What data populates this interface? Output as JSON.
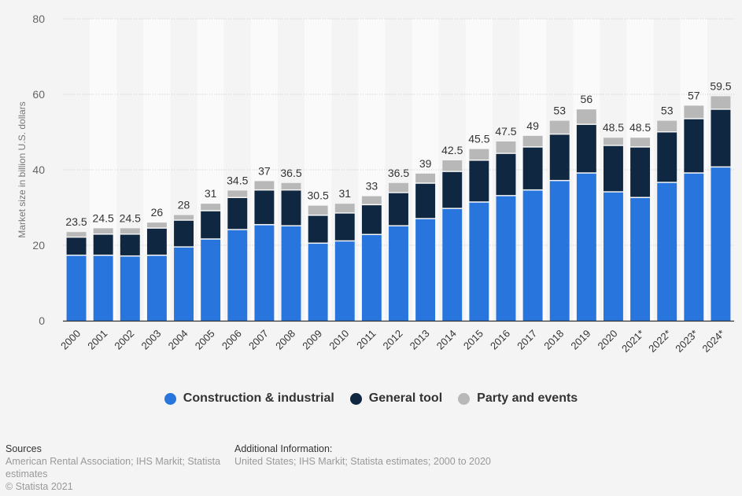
{
  "chart_data": {
    "type": "bar",
    "stacked": true,
    "title": "",
    "xlabel": "",
    "ylabel": "Market size in billion U.S. dollars",
    "ylim": [
      0,
      80
    ],
    "yticks": [
      0,
      20,
      40,
      60,
      80
    ],
    "grid": true,
    "legend_position": "bottom-center",
    "categories": [
      "2000",
      "2001",
      "2002",
      "2003",
      "2004",
      "2005",
      "2006",
      "2007",
      "2008",
      "2009",
      "2010",
      "2011",
      "2012",
      "2013",
      "2014",
      "2015",
      "2016",
      "2017",
      "2018",
      "2019",
      "2020",
      "2021*",
      "2022*",
      "2023*",
      "2024*"
    ],
    "series": [
      {
        "name": "Construction & industrial",
        "color": "#2876dd",
        "values": [
          17.2,
          17.2,
          17.0,
          17.2,
          19.4,
          21.5,
          24.0,
          25.3,
          25.0,
          20.4,
          21.0,
          22.7,
          25.0,
          26.9,
          29.6,
          31.3,
          33.0,
          34.5,
          37.0,
          39.0,
          34.0,
          32.5,
          36.5,
          39.0,
          40.6
        ]
      },
      {
        "name": "General tool",
        "color": "#0f2741",
        "values": [
          4.8,
          5.6,
          5.8,
          7.2,
          7.1,
          7.5,
          8.5,
          9.2,
          9.5,
          7.4,
          7.4,
          7.9,
          8.8,
          9.4,
          9.8,
          11.1,
          11.2,
          11.4,
          12.3,
          12.9,
          12.3,
          13.4,
          13.4,
          14.4,
          15.3
        ]
      },
      {
        "name": "Party and events",
        "color": "#b8b8b8",
        "values": [
          1.5,
          1.7,
          1.7,
          1.6,
          1.5,
          2.0,
          2.0,
          2.5,
          2.0,
          2.7,
          2.6,
          2.4,
          2.7,
          2.7,
          3.1,
          3.1,
          3.3,
          3.1,
          3.7,
          4.1,
          2.2,
          2.6,
          3.1,
          3.6,
          3.6
        ]
      }
    ],
    "totals": [
      "23.5",
      "24.5",
      "24.5",
      "26",
      "28",
      "31",
      "34.5",
      "37",
      "36.5",
      "30.5",
      "31",
      "33",
      "36.5",
      "39",
      "42.5",
      "45.5",
      "47.5",
      "49",
      "53",
      "56",
      "48.5",
      "48.5",
      "53",
      "57",
      "59.5"
    ]
  },
  "legend": {
    "items": [
      {
        "label": "Construction & industrial",
        "color": "#2876dd"
      },
      {
        "label": "General tool",
        "color": "#0f2741"
      },
      {
        "label": "Party and events",
        "color": "#b8b8b8"
      }
    ]
  },
  "footer": {
    "sources_title": "Sources",
    "sources_text": "American Rental Association; IHS Markit; Statista estimates",
    "copyright": "© Statista 2021",
    "info_title": "Additional Information:",
    "info_text": "United States; IHS Markit; Statista estimates; 2000 to 2020"
  }
}
